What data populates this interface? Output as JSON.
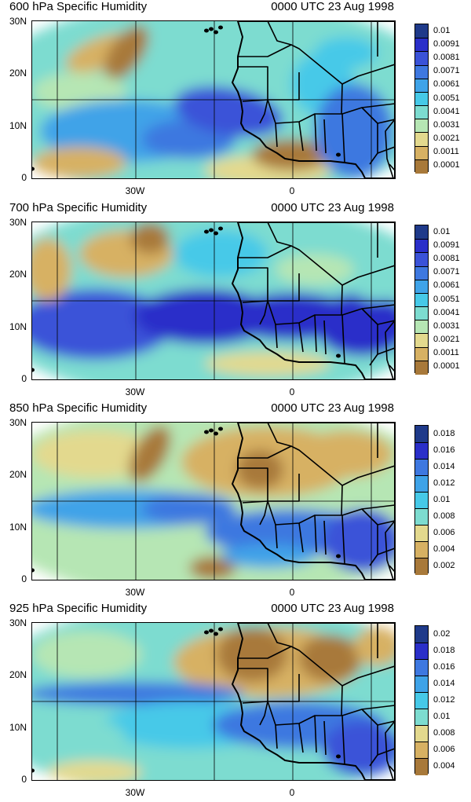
{
  "panels": [
    {
      "title": "600 hPa Specific Humidity",
      "time": "0000 UTC 23 Aug 1998",
      "colorbar_labels": [
        "0.01",
        "0.0091",
        "0.0081",
        "0.0071",
        "0.0061",
        "0.0051",
        "0.0041",
        "0.0031",
        "0.0021",
        "0.0011",
        "0.0001"
      ]
    },
    {
      "title": "700 hPa Specific Humidity",
      "time": "0000 UTC 23 Aug 1998",
      "colorbar_labels": [
        "0.01",
        "0.0091",
        "0.0081",
        "0.0071",
        "0.0061",
        "0.0051",
        "0.0041",
        "0.0031",
        "0.0021",
        "0.0011",
        "0.0001"
      ]
    },
    {
      "title": "850 hPa Specific Humidity",
      "time": "0000 UTC 23 Aug 1998",
      "colorbar_labels": [
        "0.018",
        "0.016",
        "0.014",
        "0.012",
        "0.01",
        "0.008",
        "0.006",
        "0.004",
        "0.002"
      ]
    },
    {
      "title": "925 hPa Specific Humidity",
      "time": "0000 UTC 23 Aug 1998",
      "colorbar_labels": [
        "0.02",
        "0.018",
        "0.016",
        "0.014",
        "0.012",
        "0.01",
        "0.008",
        "0.006",
        "0.004"
      ]
    }
  ],
  "axes": {
    "y_ticks": [
      "30N",
      "20N",
      "10N",
      "0"
    ],
    "x_ticks": [
      "30W",
      "0"
    ]
  },
  "palette": [
    "#1f3a8a",
    "#2a2fc9",
    "#3a52d8",
    "#3e78e0",
    "#3fa3e8",
    "#46c9e8",
    "#7ddcd0",
    "#b6e6b4",
    "#e3d98e",
    "#d7b163",
    "#a8793a"
  ]
}
